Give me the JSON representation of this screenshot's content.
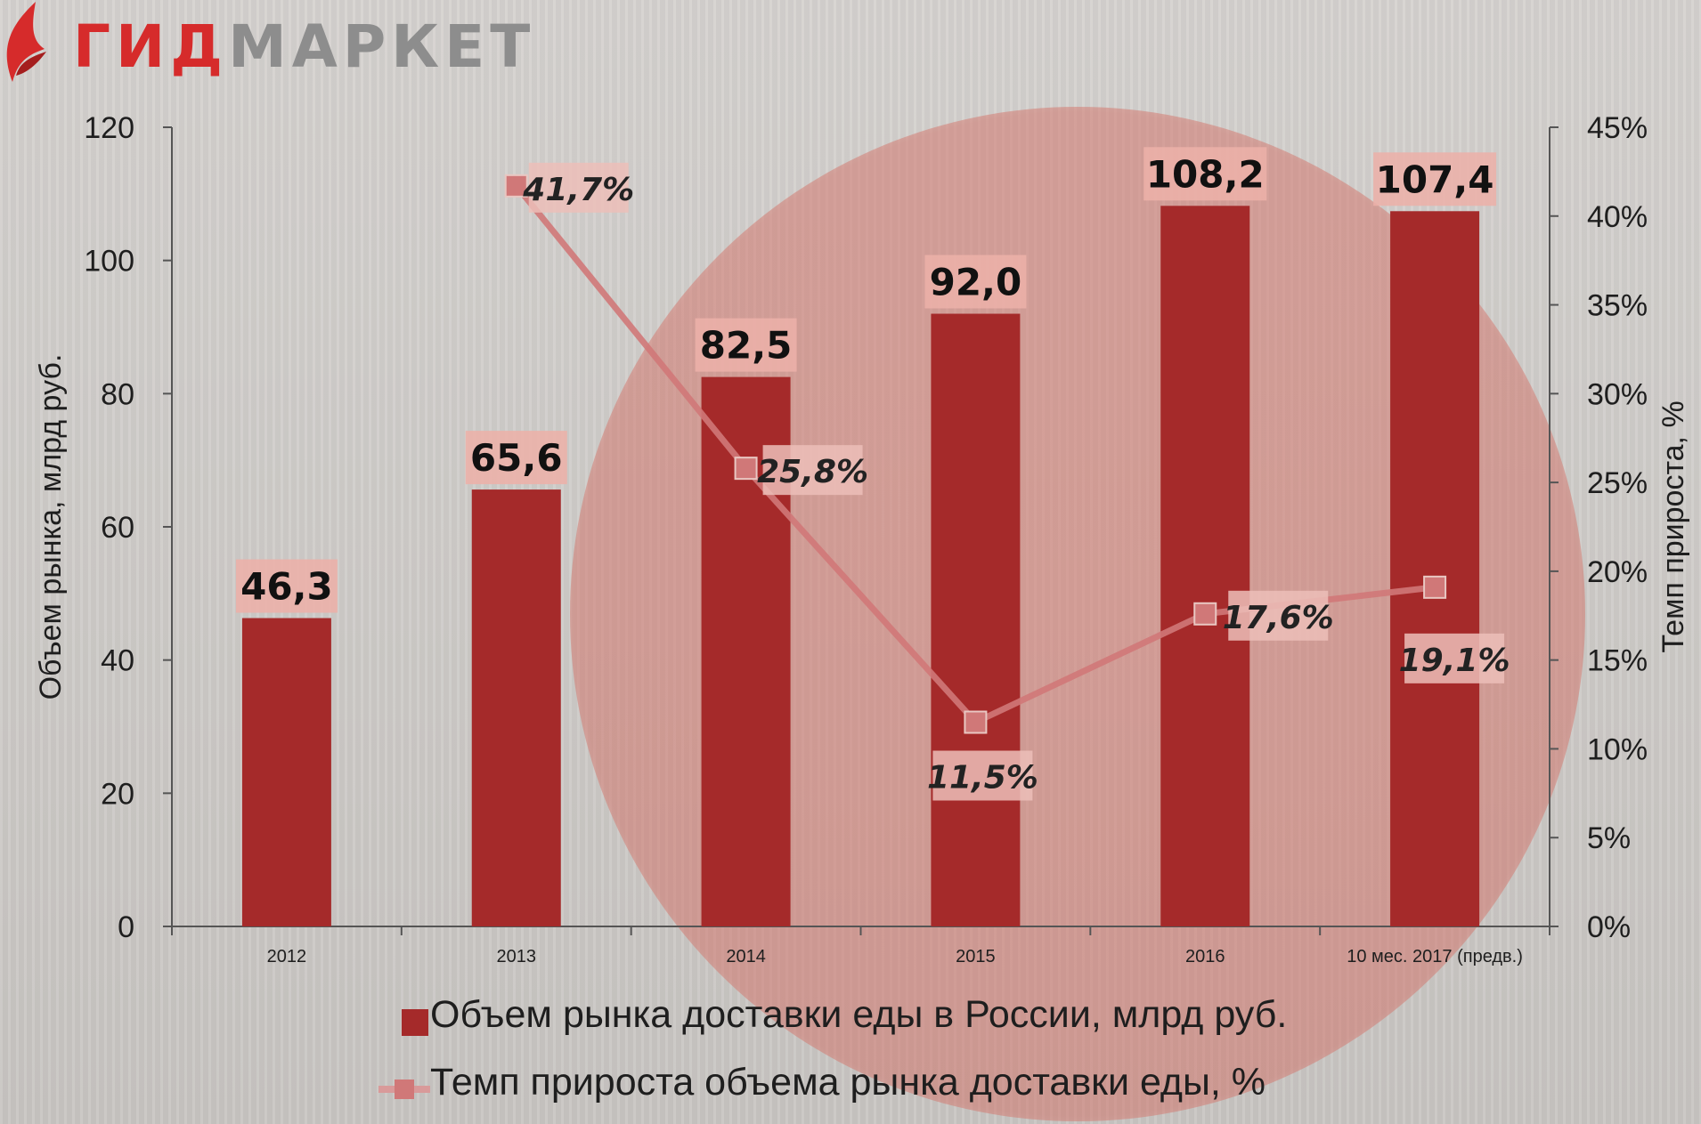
{
  "logo": {
    "part1": "ГИД",
    "part2": "МАРКЕТ",
    "red": "#d62b2b",
    "grey": "#8d8d8d"
  },
  "chart_data": {
    "type": "bar",
    "categories": [
      "2012",
      "2013",
      "2014",
      "2015",
      "2016",
      "10 мес. 2017 (предв.)"
    ],
    "series": [
      {
        "name": "Объем рынка доставки еды в России, млрд руб.",
        "kind": "bar",
        "axis": "left",
        "values": [
          46.3,
          65.6,
          82.5,
          92.0,
          108.2,
          107.4
        ],
        "labels": [
          "46,3",
          "65,6",
          "82,5",
          "92,0",
          "108,2",
          "107,4"
        ],
        "color": "#a52a2a"
      },
      {
        "name": "Темп прироста объема рынка доставки еды, %",
        "kind": "line",
        "axis": "right",
        "values": [
          null,
          41.7,
          25.8,
          11.5,
          17.6,
          19.1
        ],
        "labels": [
          null,
          "41,7%",
          "25,8%",
          "11,5%",
          "17,6%",
          "19,1%"
        ],
        "color": "#d07878"
      }
    ],
    "ylabel": "Объем рынка, млрд руб.",
    "ylim": [
      0,
      120
    ],
    "yticks": [
      "0",
      "20",
      "40",
      "60",
      "80",
      "100",
      "120"
    ],
    "y2label": "Темп прироста, %",
    "y2lim": [
      0,
      45
    ],
    "y2ticks": [
      "0%",
      "5%",
      "10%",
      "15%",
      "20%",
      "25%",
      "30%",
      "35%",
      "40%",
      "45%"
    ],
    "grid": false,
    "legend_position": "bottom"
  }
}
